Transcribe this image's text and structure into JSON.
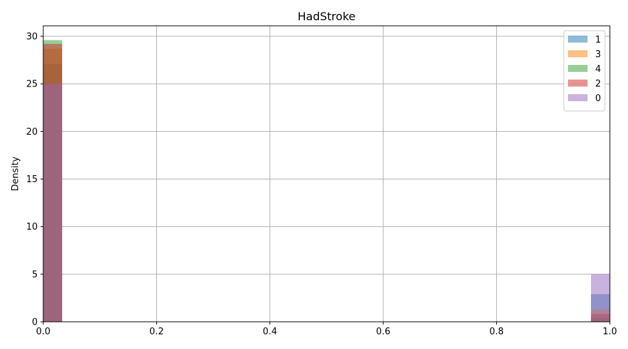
{
  "chart_data": {
    "type": "bar",
    "title": "HadStroke",
    "xlabel": "",
    "ylabel": "Density",
    "xlim": [
      0.0,
      1.0
    ],
    "ylim": [
      0,
      31.1
    ],
    "bins": 30,
    "bin_width": 0.0333,
    "x_ticks": [
      "0.0",
      "0.2",
      "0.4",
      "0.6",
      "0.8",
      "1.0"
    ],
    "y_ticks": [
      "0",
      "5",
      "10",
      "15",
      "20",
      "25",
      "30"
    ],
    "grid": true,
    "legend_position": "top-right",
    "series": [
      {
        "name": "1",
        "color": "#1f77b4",
        "values": [
          {
            "x": 0.0,
            "density": 27.1
          },
          {
            "x": 0.9667,
            "density": 2.9
          }
        ]
      },
      {
        "name": "3",
        "color": "#ff7f0e",
        "values": [
          {
            "x": 0.0,
            "density": 28.7
          },
          {
            "x": 0.9667,
            "density": 1.3
          }
        ]
      },
      {
        "name": "4",
        "color": "#2ca02c",
        "values": [
          {
            "x": 0.0,
            "density": 29.6
          },
          {
            "x": 0.9667,
            "density": 0.4
          }
        ]
      },
      {
        "name": "2",
        "color": "#d62728",
        "values": [
          {
            "x": 0.0,
            "density": 29.2
          },
          {
            "x": 0.9667,
            "density": 0.8
          }
        ]
      },
      {
        "name": "0",
        "color": "#9467bd",
        "values": [
          {
            "x": 0.0,
            "density": 25.0
          },
          {
            "x": 0.9667,
            "density": 5.0
          }
        ]
      }
    ]
  }
}
